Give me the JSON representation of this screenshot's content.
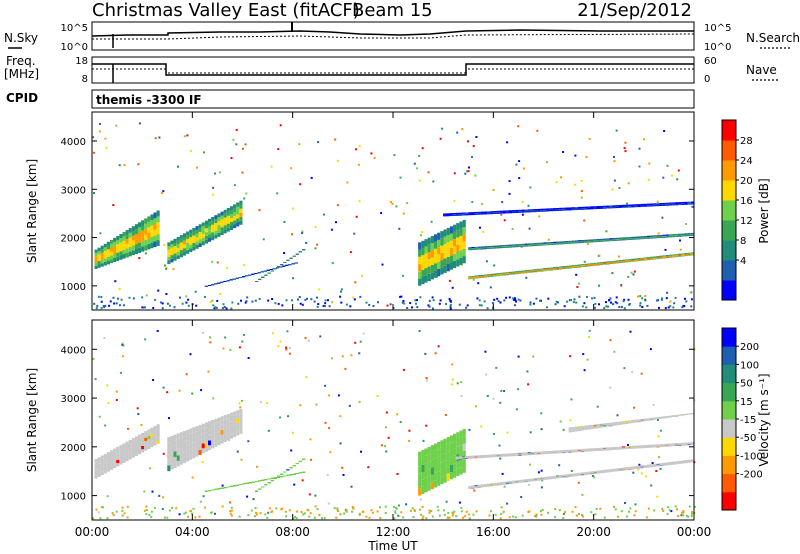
{
  "header": {
    "title": "Christmas Valley East (fitACF)",
    "beam": "Beam 15",
    "date": "21/Sep/2012"
  },
  "panels": {
    "nsky_label": "N.Sky",
    "nsky_ticks": [
      "10^5",
      "10^0"
    ],
    "nsearch_label": "N.Search",
    "nsearch_ticks": [
      "10^5",
      "10^0"
    ],
    "freq_label": "Freq.",
    "freq_unit": "[MHz]",
    "freq_ticks": [
      "18",
      "8"
    ],
    "nave_label": "Nave",
    "nave_ticks": [
      "60",
      "0"
    ],
    "cpid_label": "CPID",
    "cpid_value": "themis -3300 IF"
  },
  "chart_data": [
    {
      "type": "heatmap",
      "name": "power",
      "ylabel": "Slant Range [km]",
      "yticks": [
        1000,
        2000,
        3000,
        4000
      ],
      "ylim": [
        500,
        4600
      ],
      "xlim": [
        0,
        24
      ],
      "colorbar": {
        "label": "Power [dB]",
        "ticks": [
          "28",
          "24",
          "20",
          "16",
          "12",
          "8",
          "4"
        ],
        "colors": [
          "#0000ff",
          "#1e5fb0",
          "#1f8d7a",
          "#3aa653",
          "#6ed04b",
          "#ffd800",
          "#ff9b00",
          "#ff5a00",
          "#ff0000"
        ]
      },
      "regions": [
        {
          "t0": 0.1,
          "t1": 2.7,
          "r0a": 1350,
          "r1a": 1750,
          "r0b": 1850,
          "r1b": 2600,
          "level": 0.8
        },
        {
          "t0": 3.0,
          "t1": 6.0,
          "r0a": 1450,
          "r1a": 1900,
          "r0b": 2300,
          "r1b": 2800,
          "level": 0.7
        },
        {
          "t0": 4.5,
          "t1": 8.2,
          "r0a": 1000,
          "r1a": 1000,
          "r0b": 1500,
          "r1b": 1500,
          "level": 0.3
        },
        {
          "t0": 6.5,
          "t1": 8.5,
          "r0a": 1100,
          "r1a": 1100,
          "r0b": 1800,
          "r1b": 1800,
          "level": 0.65
        },
        {
          "t0": 13.0,
          "t1": 14.9,
          "r0a": 1900,
          "r1a": 1000,
          "r0b": 2400,
          "r1b": 1500,
          "level": 0.75
        },
        {
          "t0": 15.0,
          "t1": 24.0,
          "r0a": 1150,
          "r1a": 1200,
          "r0b": 1650,
          "r1b": 1700,
          "level": 0.95
        },
        {
          "t0": 15.0,
          "t1": 24.0,
          "r0a": 1750,
          "r1a": 1800,
          "r0b": 2050,
          "r1b": 2100,
          "level": 0.5
        },
        {
          "t0": 14.0,
          "t1": 24.0,
          "r0a": 2500,
          "r1a": 2450,
          "r0b": 2750,
          "r1b": 2700,
          "level": 0.15
        }
      ]
    },
    {
      "type": "heatmap",
      "name": "velocity",
      "ylabel": "Slant Range [km]",
      "yticks": [
        1000,
        2000,
        3000,
        4000
      ],
      "ylim": [
        500,
        4600
      ],
      "xlim": [
        0,
        24
      ],
      "xlabel": "Time UT",
      "xticks": [
        "00:00",
        "04:00",
        "08:00",
        "12:00",
        "16:00",
        "20:00",
        "00:00"
      ],
      "colorbar": {
        "label": "Velocity [m s⁻¹]",
        "ticks": [
          "200",
          "100",
          "50",
          "15",
          "-15",
          "-50",
          "-100",
          "-200"
        ],
        "colors": [
          "#ff0000",
          "#ff5a00",
          "#ff9b00",
          "#ffd800",
          "#c8c8c8",
          "#6ed04b",
          "#3aa653",
          "#1f8d7a",
          "#1e5fb0",
          "#0000ff"
        ]
      },
      "regions": [
        {
          "t0": 0.1,
          "t1": 2.7,
          "r0a": 1350,
          "r1a": 1750,
          "r0b": 2100,
          "r1b": 2500,
          "color": "#c8c8c8"
        },
        {
          "t0": 3.0,
          "t1": 6.0,
          "r0a": 1500,
          "r1a": 2200,
          "r0b": 2300,
          "r1b": 2800,
          "color": "#c8c8c8"
        },
        {
          "t0": 4.5,
          "t1": 8.5,
          "r0a": 1100,
          "r1a": 1100,
          "r0b": 1500,
          "r1b": 1500,
          "color": "#6ed04b"
        },
        {
          "t0": 6.5,
          "t1": 8.5,
          "r0a": 1100,
          "r1a": 1100,
          "r0b": 1800,
          "r1b": 1800,
          "color": "#6ed04b"
        },
        {
          "t0": 13.0,
          "t1": 14.9,
          "r0a": 1900,
          "r1a": 1000,
          "r0b": 2400,
          "r1b": 1500,
          "color": "#6ed04b"
        },
        {
          "t0": 15.0,
          "t1": 24.0,
          "r0a": 1150,
          "r1a": 1200,
          "r0b": 1700,
          "r1b": 1750,
          "color": "#c8c8c8"
        },
        {
          "t0": 14.5,
          "t1": 24.0,
          "r0a": 1750,
          "r1a": 1800,
          "r0b": 2050,
          "r1b": 2100,
          "color": "#c8c8c8"
        },
        {
          "t0": 19.0,
          "t1": 24.0,
          "r0a": 2300,
          "r1a": 2400,
          "r0b": 2700,
          "r1b": 2700,
          "color": "#c8c8c8"
        }
      ]
    }
  ]
}
